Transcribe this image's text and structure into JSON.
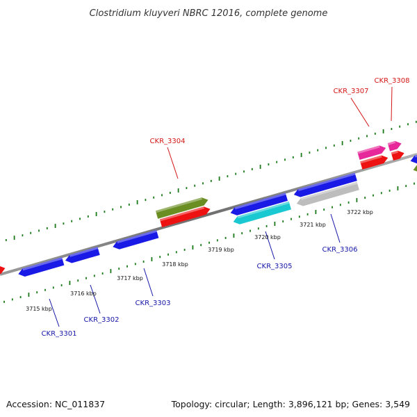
{
  "title": "Clostridium kluyveri NBRC 12016, complete genome",
  "footer": {
    "accession": "Accession: NC_011837",
    "summary": "Topology: circular; Length: 3,896,121 bp; Genes: 3,549"
  },
  "colors": {
    "backbone": "#808080",
    "tick_outer": "#1a7a1a",
    "tick_inner": "#1a7a1a",
    "label_forward": "#d41414",
    "label_reverse": "#1414a8"
  },
  "kbp_labels": [
    "3715 kbp",
    "3716 kbp",
    "3717 kbp",
    "3718 kbp",
    "3719 kbp",
    "3720 kbp",
    "3721 kbp",
    "3722 kbp"
  ],
  "genes": [
    {
      "name": "CKR_3301",
      "strand": "reverse",
      "color": "#1a1ae6"
    },
    {
      "name": "CKR_3302",
      "strand": "reverse",
      "color": "#1a1ae6"
    },
    {
      "name": "CKR_3303",
      "strand": "reverse",
      "color": "#1a1ae6"
    },
    {
      "name": "CKR_3304",
      "strand": "forward",
      "color": "#6b8e23"
    },
    {
      "name": "CKR_3305",
      "strand": "reverse",
      "color": "#1ac8d2"
    },
    {
      "name": "CKR_3306",
      "strand": "reverse",
      "color": "#bdbdbd"
    },
    {
      "name": "CKR_3307",
      "strand": "forward",
      "color": "#e6289a"
    },
    {
      "name": "CKR_3308",
      "strand": "forward",
      "color": "#e6289a"
    }
  ]
}
